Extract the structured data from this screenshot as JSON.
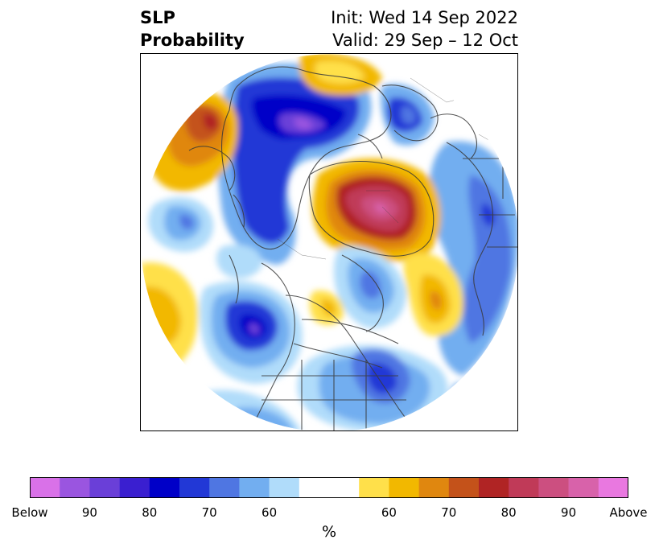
{
  "header": {
    "title_line1": "SLP",
    "title_line2": "Probability",
    "init_text": "Init: Wed 14 Sep 2022",
    "valid_text": "Valid: 29 Sep – 12 Oct"
  },
  "colorbar": {
    "unit_label": "%",
    "colors": [
      "#d971e8",
      "#9a55e0",
      "#6a3fd8",
      "#3a1fd0",
      "#0000c8",
      "#2238d6",
      "#4f76e2",
      "#72aef0",
      "#b0dcfa",
      "#ffffff",
      "#ffffff",
      "#ffe04a",
      "#f2b800",
      "#e0870f",
      "#c4521a",
      "#b02424",
      "#c03a58",
      "#cc4f80",
      "#d862aa",
      "#e978e0"
    ],
    "tick_labels": [
      "Below",
      "90",
      "80",
      "70",
      "60",
      "60",
      "70",
      "80",
      "90",
      "Above"
    ]
  },
  "map": {
    "projection": "north-polar-stereographic",
    "variable": "sea-level-pressure-tercile-probability"
  }
}
